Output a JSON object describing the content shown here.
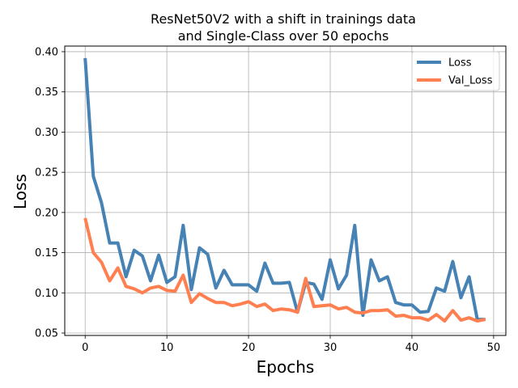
{
  "chart_data": {
    "type": "line",
    "title_lines": [
      "ResNet50V2 with a shift in trainings data",
      "and Single-Class over 50 epochs"
    ],
    "xlabel": "Epochs",
    "ylabel": "Loss",
    "xlim": [
      -2.5,
      51.5
    ],
    "ylim": [
      0.047,
      0.407
    ],
    "xticks": [
      0,
      10,
      20,
      30,
      40,
      50
    ],
    "yticks": [
      0.05,
      0.1,
      0.15,
      0.2,
      0.25,
      0.3,
      0.35,
      0.4
    ],
    "ytick_labels": [
      "0.05",
      "0.10",
      "0.15",
      "0.20",
      "0.25",
      "0.30",
      "0.35",
      "0.40"
    ],
    "grid": true,
    "legend_position": "top-right",
    "x": [
      0,
      1,
      2,
      3,
      4,
      5,
      6,
      7,
      8,
      9,
      10,
      11,
      12,
      13,
      14,
      15,
      16,
      17,
      18,
      19,
      20,
      21,
      22,
      23,
      24,
      25,
      26,
      27,
      28,
      29,
      30,
      31,
      32,
      33,
      34,
      35,
      36,
      37,
      38,
      39,
      40,
      41,
      42,
      43,
      44,
      45,
      46,
      47,
      48,
      49
    ],
    "series": [
      {
        "name": "Loss",
        "color": "#4682b4",
        "values": [
          0.392,
          0.245,
          0.212,
          0.162,
          0.162,
          0.12,
          0.153,
          0.146,
          0.115,
          0.147,
          0.113,
          0.12,
          0.184,
          0.104,
          0.156,
          0.148,
          0.106,
          0.128,
          0.11,
          0.11,
          0.11,
          0.102,
          0.137,
          0.112,
          0.112,
          0.113,
          0.076,
          0.113,
          0.111,
          0.092,
          0.141,
          0.105,
          0.122,
          0.184,
          0.072,
          0.141,
          0.115,
          0.12,
          0.088,
          0.085,
          0.085,
          0.076,
          0.077,
          0.106,
          0.102,
          0.139,
          0.094,
          0.12,
          0.067,
          0.067
        ]
      },
      {
        "name": "Val_Loss",
        "color": "#ff7f50",
        "values": [
          0.193,
          0.15,
          0.138,
          0.115,
          0.131,
          0.108,
          0.105,
          0.1,
          0.106,
          0.108,
          0.103,
          0.102,
          0.122,
          0.088,
          0.099,
          0.093,
          0.088,
          0.088,
          0.084,
          0.086,
          0.089,
          0.083,
          0.086,
          0.078,
          0.08,
          0.079,
          0.076,
          0.118,
          0.083,
          0.084,
          0.085,
          0.08,
          0.082,
          0.076,
          0.075,
          0.078,
          0.078,
          0.079,
          0.071,
          0.072,
          0.069,
          0.069,
          0.066,
          0.073,
          0.065,
          0.078,
          0.066,
          0.069,
          0.065,
          0.067
        ]
      }
    ]
  }
}
